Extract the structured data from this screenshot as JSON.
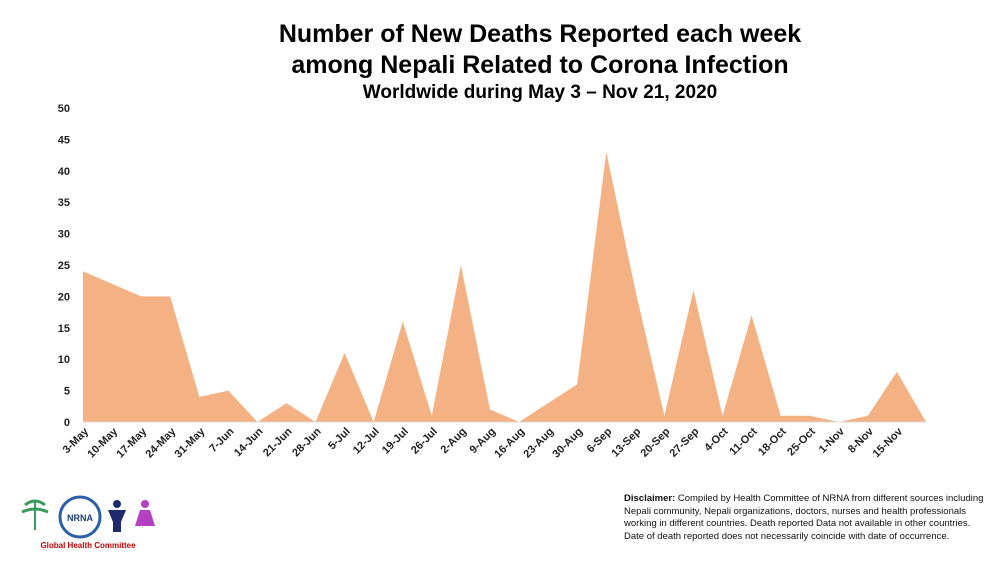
{
  "chart_data": {
    "type": "area",
    "title": [
      "Number of New Deaths Reported each week",
      "among Nepali Related to Corona Infection"
    ],
    "subtitle": "Worldwide during May 3 – Nov 21, 2020",
    "categories": [
      "3-May",
      "10-May",
      "17-May",
      "24-May",
      "31-May",
      "7-Jun",
      "14-Jun",
      "21-Jun",
      "28-Jun",
      "5-Jul",
      "12-Jul",
      "19-Jul",
      "26-Jul",
      "2-Aug",
      "9-Aug",
      "16-Aug",
      "23-Aug",
      "30-Aug",
      "6-Sep",
      "13-Sep",
      "20-Sep",
      "27-Sep",
      "4-Oct",
      "11-Oct",
      "18-Oct",
      "25-Oct",
      "1-Nov",
      "8-Nov",
      "15-Nov",
      null
    ],
    "values": [
      24,
      22,
      20,
      20,
      4,
      5,
      0,
      3,
      0,
      11,
      0,
      16,
      1,
      25,
      2,
      0,
      3,
      6,
      43,
      21,
      1,
      21,
      1,
      17,
      1,
      1,
      0,
      1,
      8,
      0
    ],
    "color": "#f4b183",
    "ylim": [
      0,
      50
    ],
    "yticks": [
      0,
      5,
      10,
      15,
      20,
      25,
      30,
      35,
      40,
      45,
      50
    ]
  },
  "logo": {
    "org": "NRNA",
    "caption": "Global Health Committee"
  },
  "disclaimer": {
    "label": "Disclaimer:",
    "text": "Compiled by Health Committee  of NRNA  from different sources including Nepali community, Nepali organizations, doctors, nurses and health professionals working in different countries. Death reported Data not available in other countries. Date of death reported does not necessarily coincide with date of occurrence."
  }
}
